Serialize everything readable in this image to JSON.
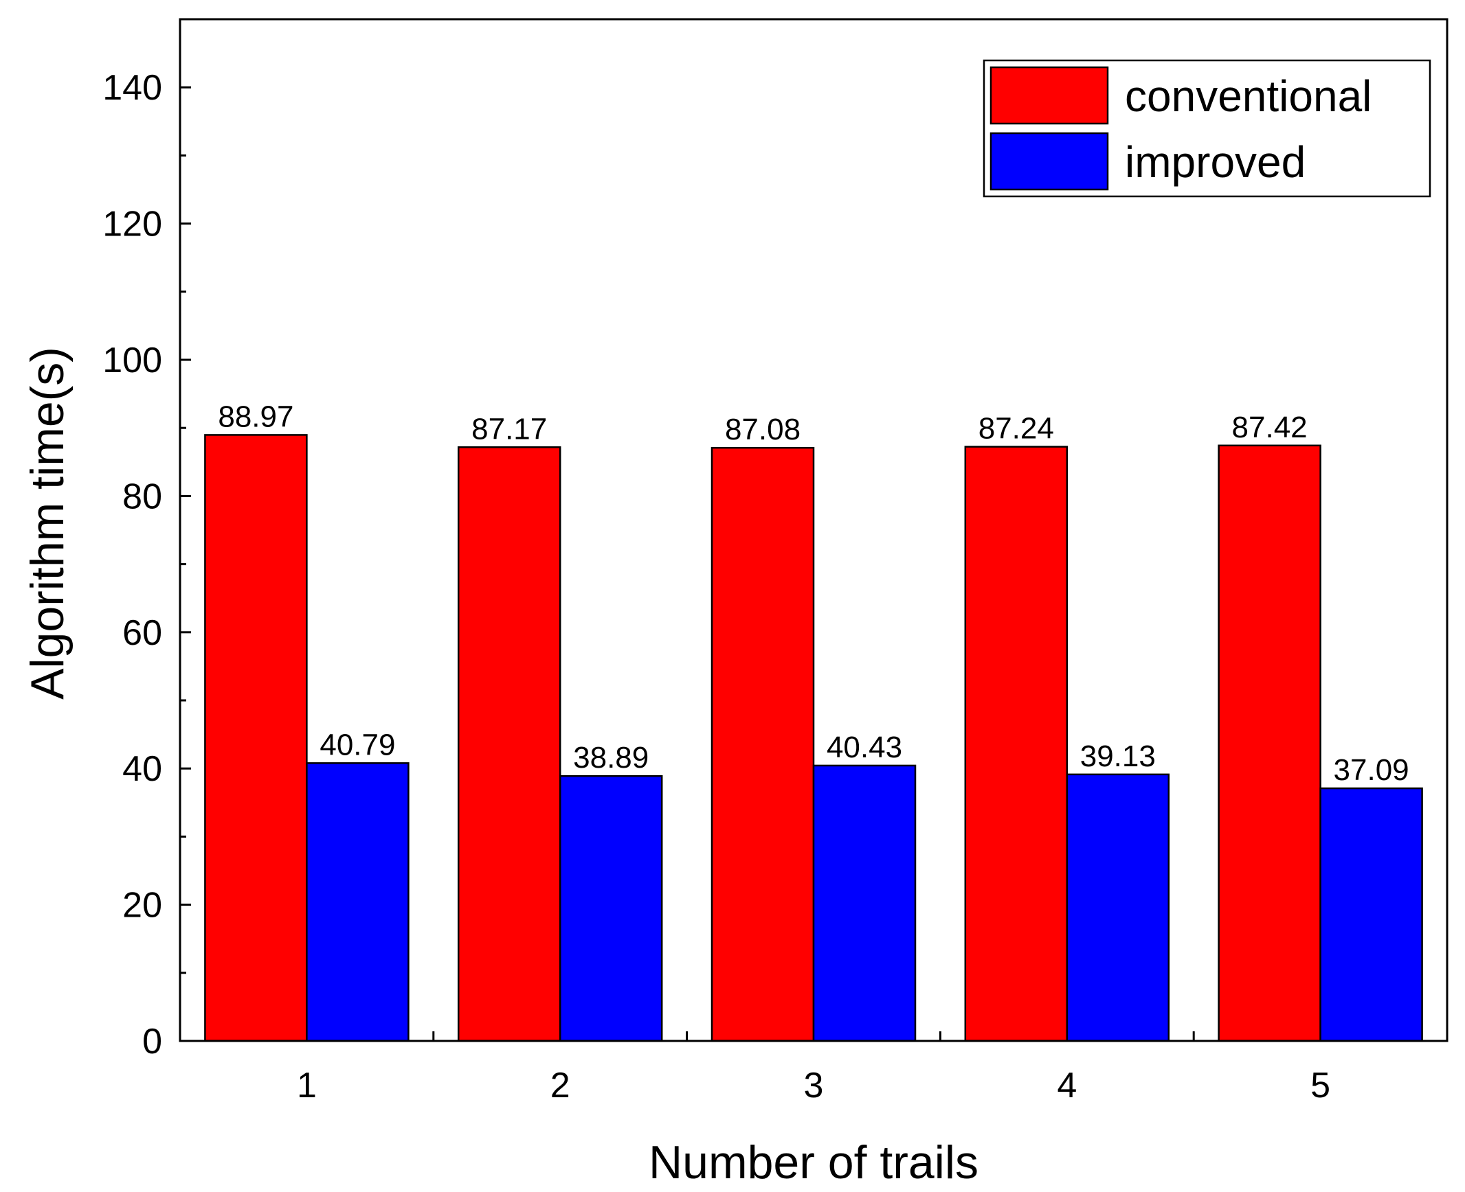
{
  "chart_data": {
    "type": "bar",
    "title": "",
    "xlabel": "Number of trails",
    "ylabel": "Algorithm time(s)",
    "categories": [
      "1",
      "2",
      "3",
      "4",
      "5"
    ],
    "series": [
      {
        "name": "conventional",
        "color": "#ff0000",
        "values": [
          88.97,
          87.17,
          87.08,
          87.24,
          87.42
        ],
        "labels": [
          "88.97",
          "87.17",
          "87.08",
          "87.24",
          "87.42"
        ]
      },
      {
        "name": "improved",
        "color": "#0000ff",
        "values": [
          40.79,
          38.89,
          40.43,
          39.13,
          37.09
        ],
        "labels": [
          "40.79",
          "38.89",
          "40.43",
          "39.13",
          "37.09"
        ]
      }
    ],
    "ylim": [
      0,
      150
    ],
    "yticks": [
      0,
      20,
      40,
      60,
      80,
      100,
      120,
      140
    ],
    "ytick_labels": [
      "0",
      "20",
      "40",
      "60",
      "80",
      "100",
      "120",
      "140"
    ],
    "grid": false,
    "legend_position": "top-right"
  }
}
